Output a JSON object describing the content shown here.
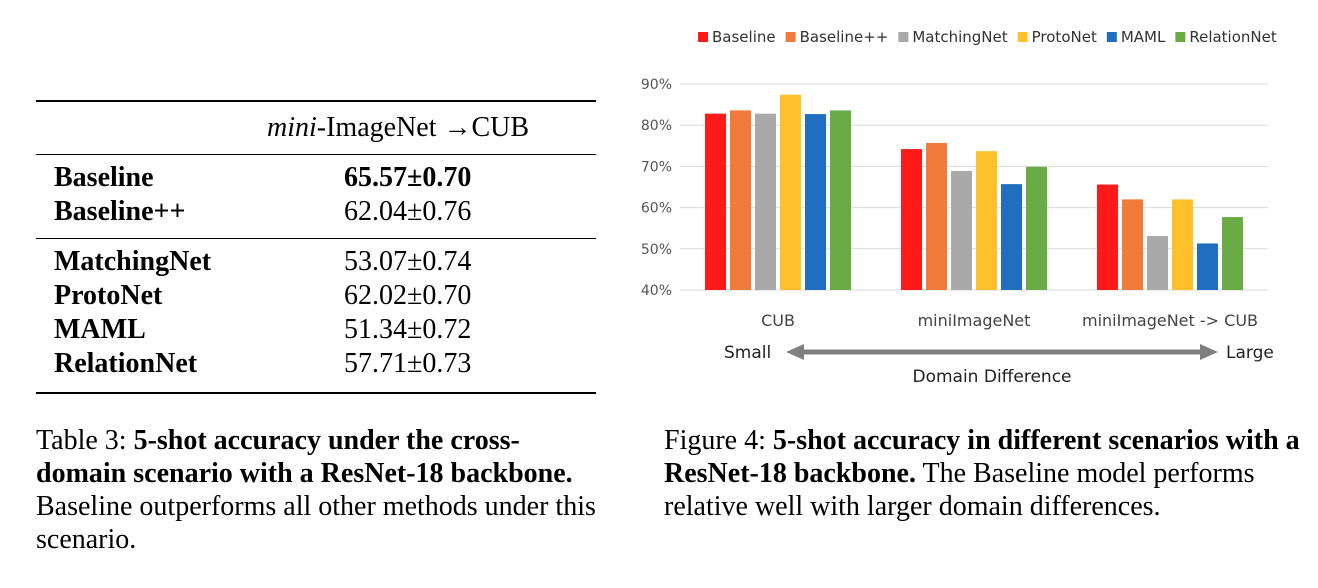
{
  "table": {
    "header_italic": "mini",
    "header_rest": "-ImageNet →CUB",
    "group1": [
      {
        "method": "Baseline",
        "accuracy": "65.57±0.70",
        "bold": true
      },
      {
        "method": "Baseline++",
        "accuracy": "62.04±0.76",
        "bold": false
      }
    ],
    "group2": [
      {
        "method": "MatchingNet",
        "accuracy": "53.07±0.74",
        "bold": false
      },
      {
        "method": "ProtoNet",
        "accuracy": "62.02±0.70",
        "bold": false
      },
      {
        "method": "MAML",
        "accuracy": "51.34±0.72",
        "bold": false
      },
      {
        "method": "RelationNet",
        "accuracy": "57.71±0.73",
        "bold": false
      }
    ]
  },
  "table_caption": {
    "label": "Table 3:",
    "bold_text": "5-shot accuracy under the cross-domain scenario with a ResNet-18 backbone.",
    "rest_text": "Baseline outperforms all other methods under this scenario."
  },
  "figure_caption": {
    "label": "Figure 4:",
    "bold_text": "5-shot accuracy in different scenarios with a ResNet-18 backbone.",
    "rest_text": "The Baseline model performs relative well with larger domain differences."
  },
  "chart_data": {
    "type": "bar",
    "categories": [
      "CUB",
      "miniImageNet",
      "miniImageNet -> CUB"
    ],
    "series": [
      {
        "name": "Baseline",
        "color": "#ff1a1a",
        "values": [
          82.8,
          74.2,
          65.6
        ]
      },
      {
        "name": "Baseline++",
        "color": "#f07b3a",
        "values": [
          83.6,
          75.7,
          62.0
        ]
      },
      {
        "name": "MatchingNet",
        "color": "#a9a9a9",
        "values": [
          82.8,
          68.9,
          53.1
        ]
      },
      {
        "name": "ProtoNet",
        "color": "#ffc12b",
        "values": [
          87.4,
          73.7,
          62.0
        ]
      },
      {
        "name": "MAML",
        "color": "#1f6ec2",
        "values": [
          82.7,
          65.7,
          51.3
        ]
      },
      {
        "name": "RelationNet",
        "color": "#6aab46",
        "values": [
          83.6,
          69.9,
          57.7
        ]
      }
    ],
    "ylim": [
      40,
      90
    ],
    "yticks": [
      "40%",
      "50%",
      "60%",
      "70%",
      "80%",
      "90%"
    ],
    "legend_position": "top",
    "grid": true,
    "arrow": {
      "left_label": "Small",
      "right_label": "Large",
      "axis_label": "Domain Difference"
    }
  }
}
